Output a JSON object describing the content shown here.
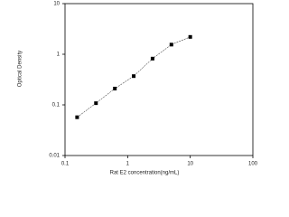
{
  "chart_data": {
    "type": "scatter",
    "x_label": "Rat E2 concentration(ng/mL)",
    "y_label": "Optical Density",
    "x": [
      0.156,
      0.312,
      0.625,
      1.25,
      2.5,
      5,
      10
    ],
    "values": [
      0.057,
      0.108,
      0.21,
      0.37,
      0.82,
      1.55,
      2.2
    ],
    "color": "#000000",
    "x_log": true,
    "y_log": true,
    "xlim": [
      0.1,
      100
    ],
    "xticks": [
      0.1,
      1,
      10,
      100
    ],
    "ylim": [
      0.01,
      10
    ],
    "yticks": [
      0.01,
      0.1,
      1,
      10
    ]
  }
}
